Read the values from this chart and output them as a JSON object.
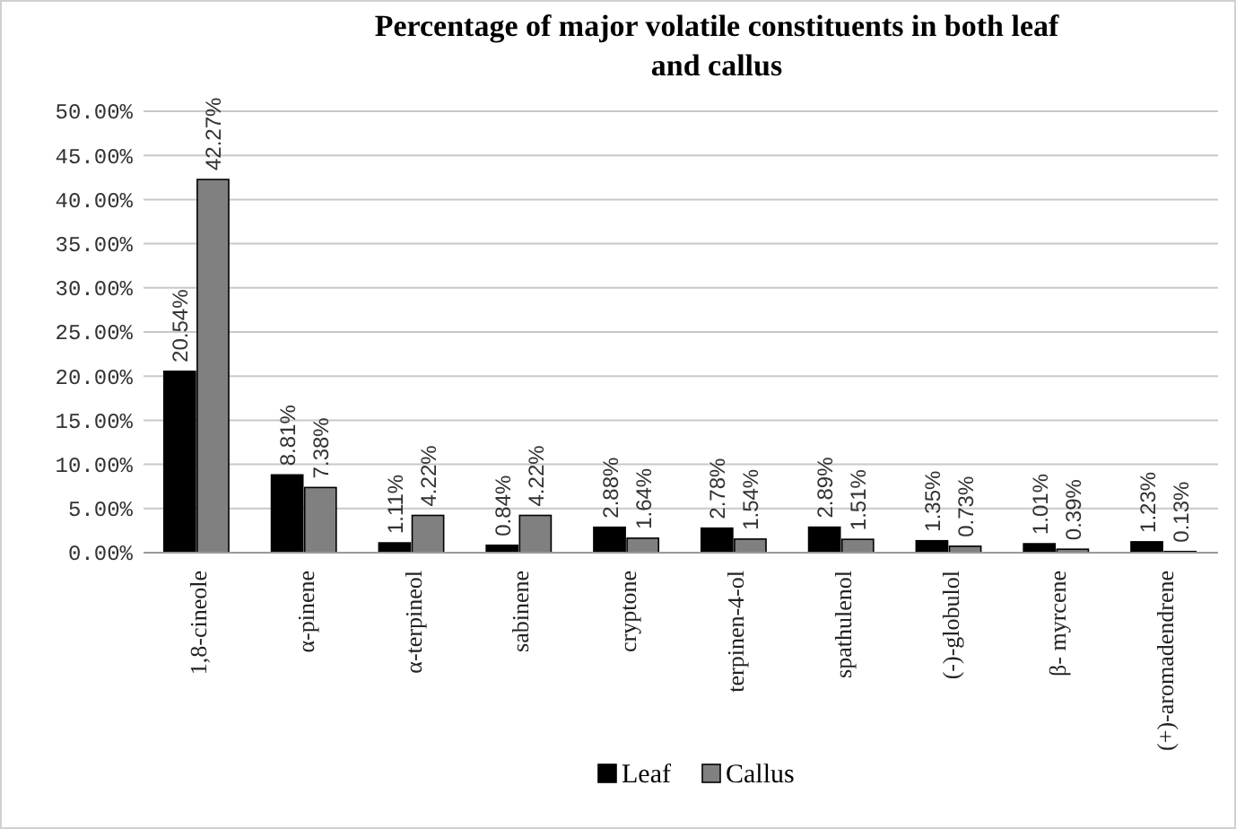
{
  "chart_data": {
    "type": "bar",
    "title": "Percentage of major volatile constituents in both leaf and callus",
    "categories": [
      "1,8-cineole",
      "α-pinene",
      "α-terpineol",
      "sabinene",
      "cryptone",
      "terpinen-4-ol",
      "spathulenol",
      "(-)-globulol",
      "β- myrcene",
      "(+)-aromadendrene"
    ],
    "series": [
      {
        "name": "Leaf",
        "color": "#000000",
        "values": [
          20.54,
          8.81,
          1.11,
          0.84,
          2.88,
          2.78,
          2.89,
          1.35,
          1.01,
          1.23
        ],
        "value_labels": [
          "20.54%",
          "8.81%",
          "1.11%",
          "0.84%",
          "2.88%",
          "2.78%",
          "2.89%",
          "1.35%",
          "1.01%",
          "1.23%"
        ]
      },
      {
        "name": "Callus",
        "color": "#808080",
        "values": [
          42.27,
          7.38,
          4.22,
          4.22,
          1.64,
          1.54,
          1.51,
          0.73,
          0.39,
          0.13
        ],
        "value_labels": [
          "42.27%",
          "7.38%",
          "4.22%",
          "4.22%",
          "1.64%",
          "1.54%",
          "1.51%",
          "0.73%",
          "0.39%",
          "0.13%"
        ]
      }
    ],
    "ylim": [
      0,
      50
    ],
    "yticks": [
      {
        "value": 0,
        "label": "0.00%"
      },
      {
        "value": 5,
        "label": "5.00%"
      },
      {
        "value": 10,
        "label": "10.00%"
      },
      {
        "value": 15,
        "label": "15.00%"
      },
      {
        "value": 20,
        "label": "20.00%"
      },
      {
        "value": 25,
        "label": "25.00%"
      },
      {
        "value": 30,
        "label": "30.00%"
      },
      {
        "value": 35,
        "label": "35.00%"
      },
      {
        "value": 40,
        "label": "40.00%"
      },
      {
        "value": 45,
        "label": "45.00%"
      },
      {
        "value": 50,
        "label": "50.00%"
      }
    ],
    "grid": "y",
    "legend": "bottom"
  }
}
